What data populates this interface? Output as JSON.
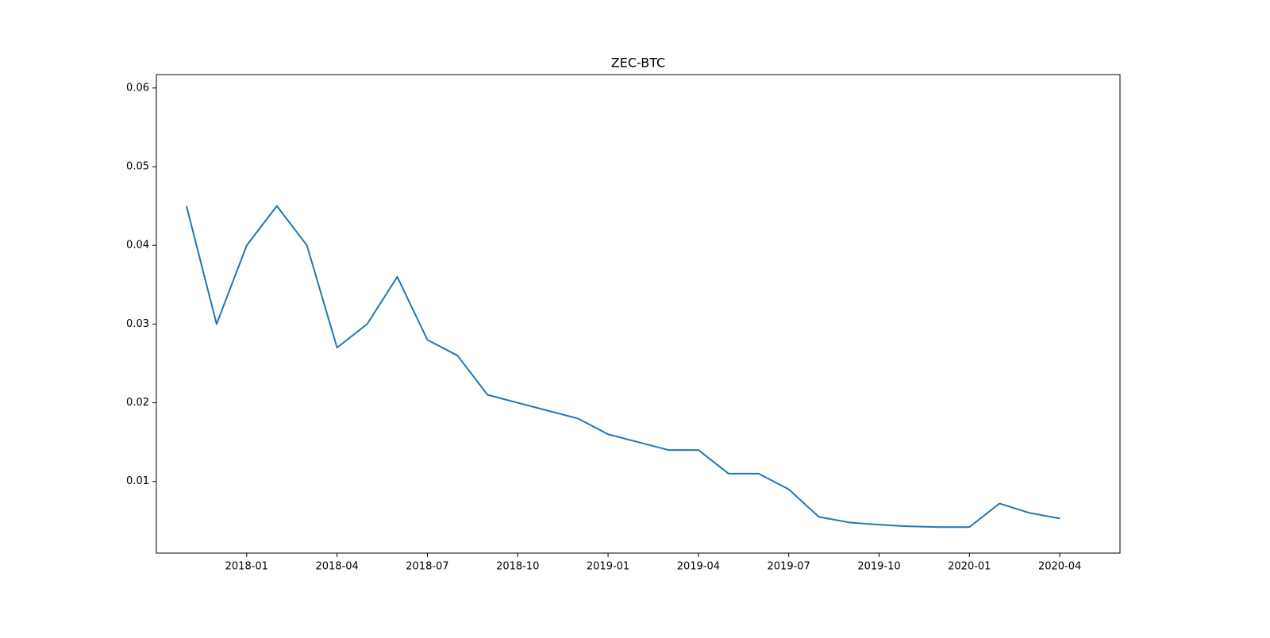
{
  "chart_data": {
    "type": "line",
    "title": "ZEC-BTC",
    "x": [
      "2017-11",
      "2017-12",
      "2018-01",
      "2018-02",
      "2018-03",
      "2018-04",
      "2018-05",
      "2018-06",
      "2018-07",
      "2018-08",
      "2018-09",
      "2018-10",
      "2018-11",
      "2018-12",
      "2019-01",
      "2019-02",
      "2019-03",
      "2019-04",
      "2019-05",
      "2019-06",
      "2019-07",
      "2019-08",
      "2019-09",
      "2019-10",
      "2019-11",
      "2019-12",
      "2020-01",
      "2020-02",
      "2020-03",
      "2020-04"
    ],
    "series": [
      {
        "name": "ZEC-BTC",
        "color": "#1f77b4",
        "values": [
          0.045,
          0.03,
          0.04,
          0.045,
          0.04,
          0.027,
          0.03,
          0.036,
          0.028,
          0.026,
          0.021,
          0.02,
          0.019,
          0.018,
          0.016,
          0.015,
          0.014,
          0.014,
          0.011,
          0.011,
          0.009,
          0.0055,
          0.0048,
          0.0045,
          0.0043,
          0.0042,
          0.0042,
          0.0072,
          0.006,
          0.0053
        ]
      }
    ],
    "xlim": [
      "2017-10",
      "2020-06"
    ],
    "xticks": [
      "2018-01",
      "2018-04",
      "2018-07",
      "2018-10",
      "2019-01",
      "2019-04",
      "2019-07",
      "2019-10",
      "2020-01",
      "2020-04"
    ],
    "ylim": [
      0.0009,
      0.0617
    ],
    "yticks": [
      0.01,
      0.02,
      0.03,
      0.04,
      0.05,
      0.06
    ],
    "grid": false
  }
}
